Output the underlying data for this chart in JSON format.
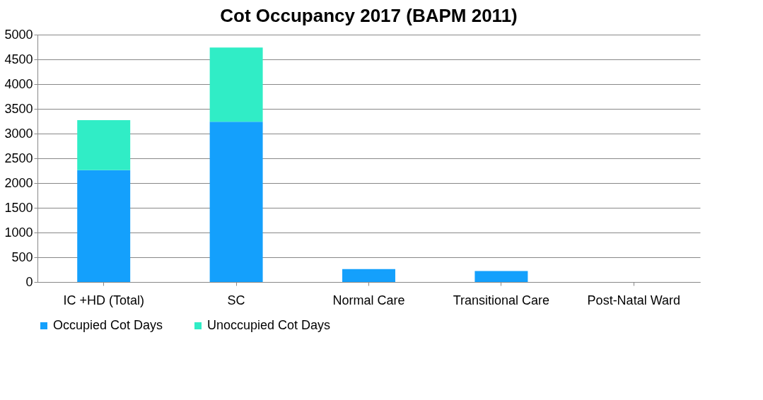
{
  "chart_data": {
    "type": "bar",
    "title": "Cot Occupancy 2017 (BAPM 2011)",
    "categories": [
      "IC +HD (Total)",
      "SC",
      "Normal Care",
      "Transitional Care",
      "Post-Natal Ward"
    ],
    "stacked": true,
    "series": [
      {
        "name": "Occupied Cot Days",
        "color": "#14a0fc",
        "values": [
          2260,
          3240,
          260,
          220,
          0
        ]
      },
      {
        "name": "Unoccupied Cot Days",
        "color": "#30edc6",
        "values": [
          1010,
          1500,
          0,
          0,
          0
        ]
      }
    ],
    "ylim": [
      0,
      5000
    ],
    "yticks": [
      0,
      500,
      1000,
      1500,
      2000,
      2500,
      3000,
      3500,
      4000,
      4500,
      5000
    ],
    "grid": "y",
    "legend": "bottom"
  }
}
